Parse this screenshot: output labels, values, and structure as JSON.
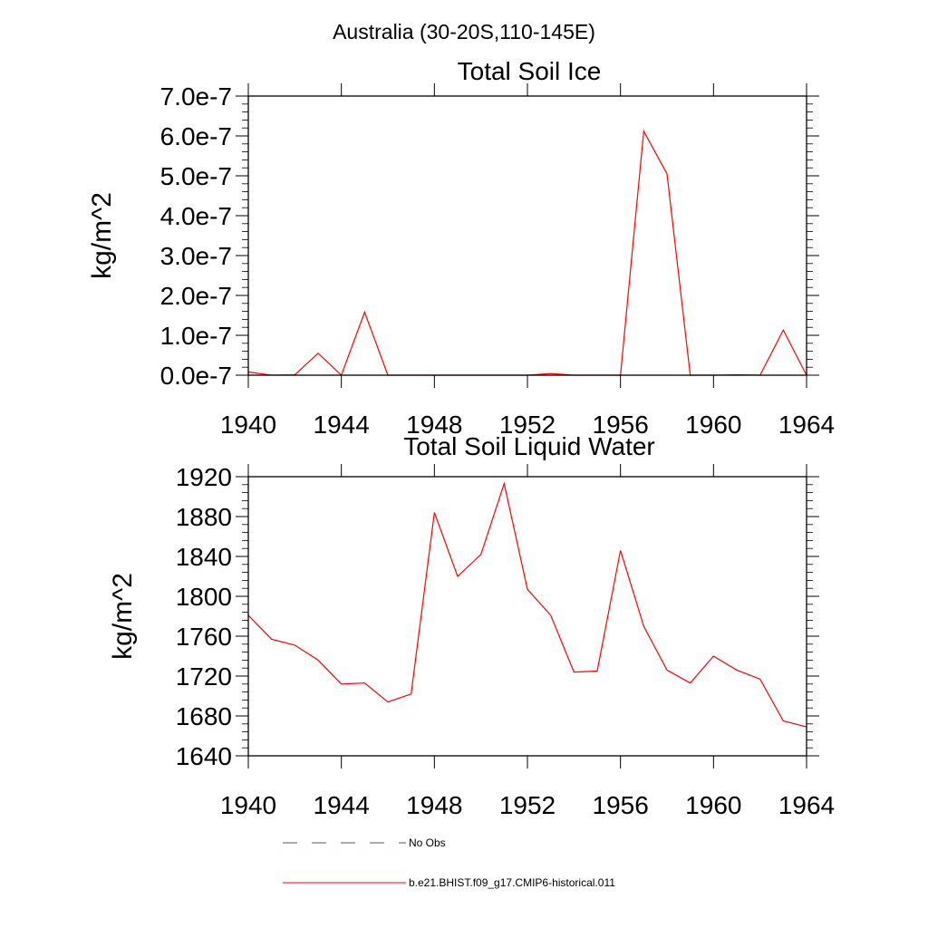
{
  "page": {
    "main_title": "Australia (30-20S,110-145E)"
  },
  "chart_data": [
    {
      "type": "line",
      "title": "Total Soil Ice",
      "xlabel": "",
      "ylabel": "kg/m^2",
      "xlim": [
        1940,
        1964
      ],
      "ylim": [
        0,
        7e-07
      ],
      "x_ticks": [
        1940,
        1944,
        1948,
        1952,
        1956,
        1960,
        1964
      ],
      "x_tick_labels": [
        "1940",
        "1944",
        "1948",
        "1952",
        "1956",
        "1960",
        "1964"
      ],
      "y_ticks": [
        0,
        1e-07,
        2e-07,
        3e-07,
        4e-07,
        5e-07,
        6e-07,
        7e-07
      ],
      "y_tick_labels": [
        "0.0e-7",
        "1.0e-7",
        "2.0e-7",
        "3.0e-7",
        "4.0e-7",
        "5.0e-7",
        "6.0e-7",
        "7.0e-7"
      ],
      "series": [
        {
          "name": "b.e21.BHIST.f09_g17.CMIP6-historical.011",
          "color": "#ff0000",
          "x": [
            1940,
            1941,
            1942,
            1943,
            1944,
            1945,
            1946,
            1947,
            1948,
            1949,
            1950,
            1951,
            1952,
            1953,
            1954,
            1955,
            1956,
            1957,
            1958,
            1959,
            1960,
            1961,
            1962,
            1963,
            1964
          ],
          "y": [
            8e-09,
            0,
            1e-09,
            5.5e-08,
            0,
            1.58e-07,
            0,
            0,
            0,
            0,
            0,
            0,
            0,
            4e-09,
            0,
            0,
            0,
            6.12e-07,
            5.05e-07,
            0,
            0,
            1e-09,
            0,
            1.13e-07,
            0
          ]
        }
      ]
    },
    {
      "type": "line",
      "title": "Total Soil Liquid Water",
      "xlabel": "",
      "ylabel": "kg/m^2",
      "xlim": [
        1940,
        1964
      ],
      "ylim": [
        1640,
        1920
      ],
      "x_ticks": [
        1940,
        1944,
        1948,
        1952,
        1956,
        1960,
        1964
      ],
      "x_tick_labels": [
        "1940",
        "1944",
        "1948",
        "1952",
        "1956",
        "1960",
        "1964"
      ],
      "y_ticks": [
        1640,
        1680,
        1720,
        1760,
        1800,
        1840,
        1880,
        1920
      ],
      "y_tick_labels": [
        "1640",
        "1680",
        "1720",
        "1760",
        "1800",
        "1840",
        "1880",
        "1920"
      ],
      "series": [
        {
          "name": "b.e21.BHIST.f09_g17.CMIP6-historical.011",
          "color": "#ff0000",
          "x": [
            1940,
            1941,
            1942,
            1943,
            1944,
            1945,
            1946,
            1947,
            1948,
            1949,
            1950,
            1951,
            1952,
            1953,
            1954,
            1955,
            1956,
            1957,
            1958,
            1959,
            1960,
            1961,
            1962,
            1963,
            1964
          ],
          "y": [
            1781,
            1757,
            1751,
            1736,
            1712,
            1713,
            1694,
            1702,
            1884,
            1820,
            1842,
            1913,
            1807,
            1781,
            1724,
            1725,
            1846,
            1770,
            1726,
            1713,
            1740,
            1726,
            1717,
            1675,
            1669
          ]
        }
      ]
    }
  ],
  "legend": {
    "placement": "bottom",
    "entries": [
      {
        "label": "No Obs",
        "color": "#4a5a78",
        "style": "dashed"
      },
      {
        "label": "b.e21.BHIST.f09_g17.CMIP6-historical.011",
        "color": "#ff0000",
        "style": "solid"
      }
    ]
  }
}
